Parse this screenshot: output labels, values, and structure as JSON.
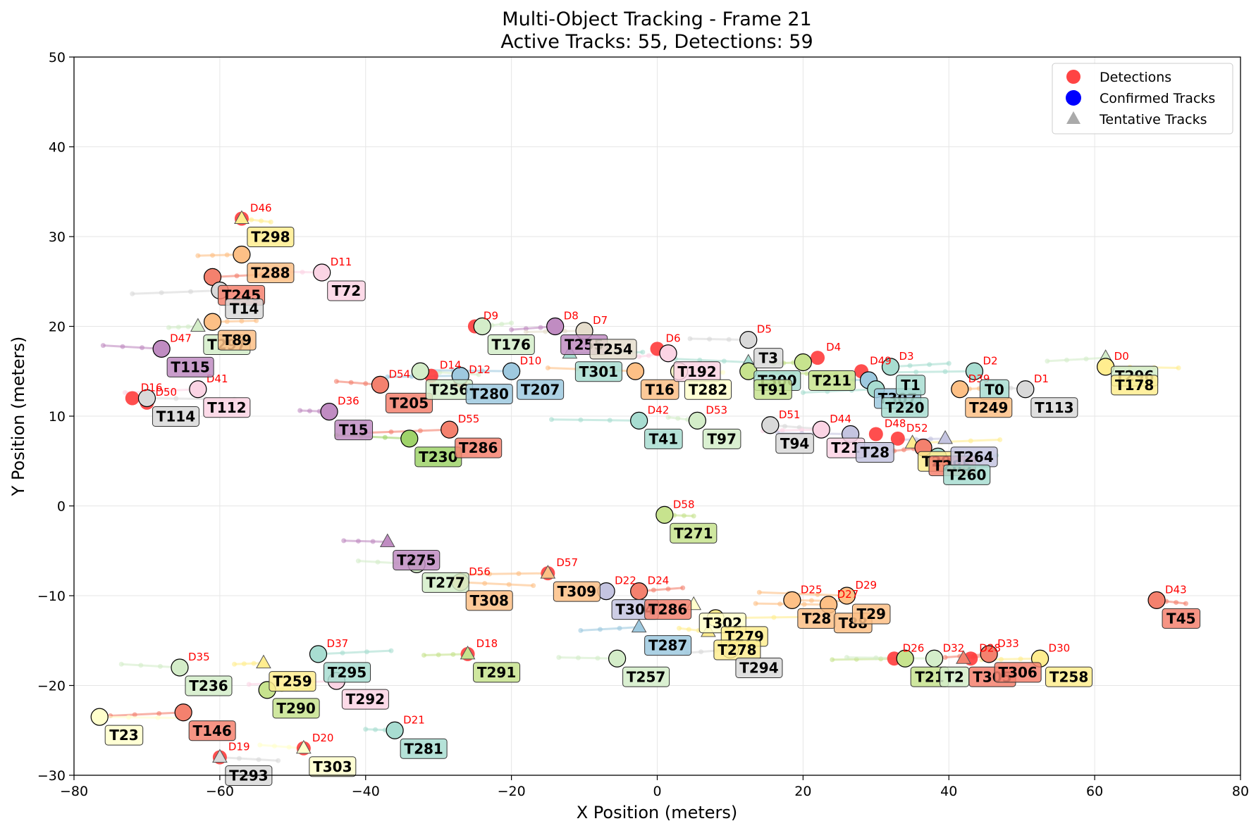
{
  "chart_data": {
    "type": "scatter",
    "title": "Multi-Object Tracking - Frame 21",
    "subtitle": "Active Tracks: 55, Detections: 59",
    "xlabel": "X Position (meters)",
    "ylabel": "Y Position (meters)",
    "xlim": [
      -80,
      80
    ],
    "ylim": [
      -30,
      50
    ],
    "xticks": [
      -80,
      -60,
      -40,
      -20,
      0,
      20,
      40,
      60,
      80
    ],
    "yticks": [
      -30,
      -20,
      -10,
      0,
      10,
      20,
      30,
      40,
      50
    ],
    "grid": true,
    "legend_position": "top-right",
    "legend": [
      {
        "label": "Detections",
        "marker": "circle",
        "color": "#ff4444"
      },
      {
        "label": "Confirmed Tracks",
        "marker": "circle",
        "color": "#0000ff"
      },
      {
        "label": "Tentative Tracks",
        "marker": "triangle",
        "color": "#aaaaaa"
      }
    ],
    "detections": [
      {
        "label": "D46",
        "x": -57,
        "y": 32
      },
      {
        "label": "D11",
        "x": -46,
        "y": 26
      },
      {
        "label": "D9",
        "x": -25,
        "y": 20
      },
      {
        "label": "D8",
        "x": -14,
        "y": 20
      },
      {
        "label": "D7",
        "x": -10,
        "y": 19.5
      },
      {
        "label": "D6",
        "x": 0,
        "y": 17.5
      },
      {
        "label": "D5",
        "x": 12.5,
        "y": 18.5
      },
      {
        "label": "D4",
        "x": 22,
        "y": 16.5
      },
      {
        "label": "D49",
        "x": 28,
        "y": 15
      },
      {
        "label": "D3",
        "x": 32,
        "y": 15.5
      },
      {
        "label": "D2",
        "x": 43.5,
        "y": 15
      },
      {
        "label": "D39",
        "x": 41.5,
        "y": 13
      },
      {
        "label": "D1",
        "x": 50.5,
        "y": 13
      },
      {
        "label": "D0",
        "x": 61.5,
        "y": 15.5
      },
      {
        "label": "D47",
        "x": -68,
        "y": 17.5
      },
      {
        "label": "D16",
        "x": -72,
        "y": 12
      },
      {
        "label": "D50",
        "x": -70,
        "y": 11.5
      },
      {
        "label": "D41",
        "x": -63,
        "y": 13
      },
      {
        "label": "D36",
        "x": -45,
        "y": 10.5
      },
      {
        "label": "D54",
        "x": -38,
        "y": 13.5
      },
      {
        "label": "D14",
        "x": -31,
        "y": 14.5
      },
      {
        "label": "D12",
        "x": -27,
        "y": 14
      },
      {
        "label": "D10",
        "x": -20,
        "y": 15
      },
      {
        "label": "D55",
        "x": -28.5,
        "y": 8.5
      },
      {
        "label": "D42",
        "x": -2.5,
        "y": 9.5
      },
      {
        "label": "D53",
        "x": 5.5,
        "y": 9.5
      },
      {
        "label": "D51",
        "x": 15.5,
        "y": 9
      },
      {
        "label": "D44",
        "x": 22.5,
        "y": 8.5
      },
      {
        "label": "D48",
        "x": 30,
        "y": 8
      },
      {
        "label": "D52",
        "x": 33,
        "y": 7.5
      },
      {
        "label": "D58",
        "x": 1,
        "y": -1
      },
      {
        "label": "D56",
        "x": -27,
        "y": -8.5
      },
      {
        "label": "D57",
        "x": -15,
        "y": -7.5
      },
      {
        "label": "D22",
        "x": -7,
        "y": -9.5
      },
      {
        "label": "D24",
        "x": -2.5,
        "y": -9.5
      },
      {
        "label": "D25",
        "x": 18.5,
        "y": -10.5
      },
      {
        "label": "D27",
        "x": 23.5,
        "y": -11
      },
      {
        "label": "D29",
        "x": 26,
        "y": -10
      },
      {
        "label": "D43",
        "x": 68.5,
        "y": -10.5
      },
      {
        "label": "D18",
        "x": -26,
        "y": -16.5
      },
      {
        "label": "D37",
        "x": -46.5,
        "y": -16.5
      },
      {
        "label": "D35",
        "x": -65.5,
        "y": -18
      },
      {
        "label": "D26",
        "x": 32.5,
        "y": -17
      },
      {
        "label": "D32",
        "x": 38,
        "y": -17
      },
      {
        "label": "D28",
        "x": 43,
        "y": -17
      },
      {
        "label": "D33",
        "x": 45.5,
        "y": -16.5
      },
      {
        "label": "D30",
        "x": 52.5,
        "y": -17
      },
      {
        "label": "D21",
        "x": -36,
        "y": -25
      },
      {
        "label": "D20",
        "x": -48.5,
        "y": -27
      },
      {
        "label": "D19",
        "x": -60,
        "y": -28
      }
    ],
    "tracks": [
      {
        "label": "T298",
        "x": -57,
        "y": 32,
        "status": "tentative",
        "color": "#ffed8f"
      },
      {
        "label": "T288",
        "x": -57,
        "y": 28,
        "status": "confirmed",
        "color": "#fdc086"
      },
      {
        "label": "T72",
        "x": -46,
        "y": 26,
        "status": "confirmed",
        "color": "#fbd4e4"
      },
      {
        "label": "T245",
        "x": -61,
        "y": 25.5,
        "status": "confirmed",
        "color": "#f4816e"
      },
      {
        "label": "T14",
        "x": -60,
        "y": 24,
        "status": "confirmed",
        "color": "#d9d9d9"
      },
      {
        "label": "T297",
        "x": -63,
        "y": 20,
        "status": "tentative",
        "color": "#d4edc9"
      },
      {
        "label": "T89",
        "x": -61,
        "y": 20.5,
        "status": "confirmed",
        "color": "#fdc086"
      },
      {
        "label": "T115",
        "x": -68,
        "y": 17.5,
        "status": "confirmed",
        "color": "#c08cc2"
      },
      {
        "label": "T112",
        "x": -63,
        "y": 13,
        "status": "confirmed",
        "color": "#fbd4e4"
      },
      {
        "label": "T114",
        "x": -70,
        "y": 12,
        "status": "confirmed",
        "color": "#d9d9d9"
      },
      {
        "label": "T15",
        "x": -45,
        "y": 10.5,
        "status": "confirmed",
        "color": "#c08cc2"
      },
      {
        "label": "T205",
        "x": -38,
        "y": 13.5,
        "status": "confirmed",
        "color": "#f4816e"
      },
      {
        "label": "T256",
        "x": -32.5,
        "y": 15,
        "status": "confirmed",
        "color": "#d4edc9"
      },
      {
        "label": "T280",
        "x": -27,
        "y": 14.5,
        "status": "confirmed",
        "color": "#9ec9df"
      },
      {
        "label": "T207",
        "x": -20,
        "y": 15,
        "status": "confirmed",
        "color": "#9ec9df"
      },
      {
        "label": "T176",
        "x": -24,
        "y": 20,
        "status": "confirmed",
        "color": "#d4edc9"
      },
      {
        "label": "T255",
        "x": -14,
        "y": 20,
        "status": "confirmed",
        "color": "#c08cc2"
      },
      {
        "label": "T254",
        "x": -10,
        "y": 19.5,
        "status": "confirmed",
        "color": "#e5ddcc"
      },
      {
        "label": "T301",
        "x": -12,
        "y": 17,
        "status": "tentative",
        "color": "#a8ddd1"
      },
      {
        "label": "T16",
        "x": -3,
        "y": 15,
        "status": "confirmed",
        "color": "#fdc086"
      },
      {
        "label": "T192",
        "x": 1.5,
        "y": 17,
        "status": "confirmed",
        "color": "#fbd4e4"
      },
      {
        "label": "T282",
        "x": 3,
        "y": 15,
        "status": "confirmed",
        "color": "#ffffcc"
      },
      {
        "label": "T3",
        "x": 12.5,
        "y": 18.5,
        "status": "confirmed",
        "color": "#d9d9d9"
      },
      {
        "label": "T300",
        "x": 12.5,
        "y": 16,
        "status": "tentative",
        "color": "#a8ddd1"
      },
      {
        "label": "T91",
        "x": 12.5,
        "y": 15,
        "status": "confirmed",
        "color": "#c7e38e"
      },
      {
        "label": "T211",
        "x": 20,
        "y": 16,
        "status": "confirmed",
        "color": "#c7e38e"
      },
      {
        "label": "T307",
        "x": 29,
        "y": 14,
        "status": "confirmed",
        "color": "#9ec9df"
      },
      {
        "label": "T1",
        "x": 32,
        "y": 15.5,
        "status": "confirmed",
        "color": "#a8ddd1"
      },
      {
        "label": "T220",
        "x": 30,
        "y": 13,
        "status": "confirmed",
        "color": "#a8ddd1"
      },
      {
        "label": "T0",
        "x": 43.5,
        "y": 15,
        "status": "confirmed",
        "color": "#a8ddd1"
      },
      {
        "label": "T249",
        "x": 41.5,
        "y": 13,
        "status": "confirmed",
        "color": "#fdc086"
      },
      {
        "label": "T113",
        "x": 50.5,
        "y": 13,
        "status": "confirmed",
        "color": "#d9d9d9"
      },
      {
        "label": "T296",
        "x": 61.5,
        "y": 16.5,
        "status": "tentative",
        "color": "#d4edc9"
      },
      {
        "label": "T178",
        "x": 61.5,
        "y": 15.5,
        "status": "confirmed",
        "color": "#ffed8f"
      },
      {
        "label": "T41",
        "x": -2.5,
        "y": 9.5,
        "status": "confirmed",
        "color": "#a8ddd1"
      },
      {
        "label": "T97",
        "x": 5.5,
        "y": 9.5,
        "status": "confirmed",
        "color": "#d4edc9"
      },
      {
        "label": "T94",
        "x": 15.5,
        "y": 9,
        "status": "confirmed",
        "color": "#d9d9d9"
      },
      {
        "label": "T21",
        "x": 22.5,
        "y": 8.5,
        "status": "confirmed",
        "color": "#fbd4e4"
      },
      {
        "label": "T28",
        "x": 26.5,
        "y": 8,
        "status": "confirmed",
        "color": "#c4c4e0"
      },
      {
        "label": "T299",
        "x": 35,
        "y": 7,
        "status": "tentative",
        "color": "#ffed8f"
      },
      {
        "label": "T285",
        "x": 36.5,
        "y": 6.5,
        "status": "confirmed",
        "color": "#f4816e"
      },
      {
        "label": "T264",
        "x": 39.5,
        "y": 7.5,
        "status": "tentative",
        "color": "#c4c4e0"
      },
      {
        "label": "T260",
        "x": 38.5,
        "y": 5.5,
        "status": "confirmed",
        "color": "#a8ddd1"
      },
      {
        "label": "T230",
        "x": -34,
        "y": 7.5,
        "status": "confirmed",
        "color": "#9fd36a"
      },
      {
        "label": "T286",
        "x": -28.5,
        "y": 8.5,
        "status": "confirmed",
        "color": "#f4816e"
      },
      {
        "label": "T271",
        "x": 1,
        "y": -1,
        "status": "confirmed",
        "color": "#c7e38e"
      },
      {
        "label": "T275",
        "x": -37,
        "y": -4,
        "status": "tentative",
        "color": "#c08cc2"
      },
      {
        "label": "T277",
        "x": -33,
        "y": -6.5,
        "status": "confirmed",
        "color": "#d4edc9"
      },
      {
        "label": "T308",
        "x": -27,
        "y": -8.5,
        "status": "confirmed",
        "color": "#fdc086"
      },
      {
        "label": "T309",
        "x": -15,
        "y": -7.5,
        "status": "tentative",
        "color": "#fdc086"
      },
      {
        "label": "T304",
        "x": -7,
        "y": -9.5,
        "status": "confirmed",
        "color": "#c4c4e0"
      },
      {
        "label": "T286",
        "x": -2.5,
        "y": -9.5,
        "status": "confirmed",
        "color": "#f4816e"
      },
      {
        "label": "T287",
        "x": -2.5,
        "y": -13.5,
        "status": "tentative",
        "color": "#9ec9df"
      },
      {
        "label": "T302",
        "x": 5,
        "y": -11,
        "status": "tentative",
        "color": "#ffffcc"
      },
      {
        "label": "T279",
        "x": 8,
        "y": -12.5,
        "status": "confirmed",
        "color": "#ffed8f"
      },
      {
        "label": "T278",
        "x": 7,
        "y": -14,
        "status": "tentative",
        "color": "#ffed8f"
      },
      {
        "label": "T294",
        "x": 10,
        "y": -16,
        "status": "confirmed",
        "color": "#d9d9d9"
      },
      {
        "label": "T28",
        "x": 18.5,
        "y": -10.5,
        "status": "confirmed",
        "color": "#fdc086"
      },
      {
        "label": "T88",
        "x": 23.5,
        "y": -11,
        "status": "confirmed",
        "color": "#fdc086"
      },
      {
        "label": "T29",
        "x": 26,
        "y": -10,
        "status": "confirmed",
        "color": "#fdc086"
      },
      {
        "label": "T45",
        "x": 68.5,
        "y": -10.5,
        "status": "confirmed",
        "color": "#f4816e"
      },
      {
        "label": "T291",
        "x": -26,
        "y": -16.5,
        "status": "tentative",
        "color": "#c7e38e"
      },
      {
        "label": "T257",
        "x": -5.5,
        "y": -17,
        "status": "confirmed",
        "color": "#d4edc9"
      },
      {
        "label": "T295",
        "x": -46.5,
        "y": -16.5,
        "status": "confirmed",
        "color": "#a8ddd1"
      },
      {
        "label": "T292",
        "x": -44,
        "y": -19.5,
        "status": "confirmed",
        "color": "#fbd4e4"
      },
      {
        "label": "T259",
        "x": -54,
        "y": -17.5,
        "status": "tentative",
        "color": "#ffed8f"
      },
      {
        "label": "T290",
        "x": -53.5,
        "y": -20.5,
        "status": "confirmed",
        "color": "#c7e38e"
      },
      {
        "label": "T236",
        "x": -65.5,
        "y": -18,
        "status": "confirmed",
        "color": "#d4edc9"
      },
      {
        "label": "T146",
        "x": -65,
        "y": -23,
        "status": "confirmed",
        "color": "#f4816e"
      },
      {
        "label": "T23",
        "x": -76.5,
        "y": -23.5,
        "status": "confirmed",
        "color": "#ffffcc"
      },
      {
        "label": "T281",
        "x": -36,
        "y": -25,
        "status": "confirmed",
        "color": "#a8ddd1"
      },
      {
        "label": "T303",
        "x": -48.5,
        "y": -27,
        "status": "tentative",
        "color": "#ffffcc"
      },
      {
        "label": "T293",
        "x": -60,
        "y": -28,
        "status": "tentative",
        "color": "#d9d9d9"
      },
      {
        "label": "T21",
        "x": 34,
        "y": -17,
        "status": "confirmed",
        "color": "#c7e38e"
      },
      {
        "label": "T2",
        "x": 38,
        "y": -17,
        "status": "confirmed",
        "color": "#d4edc9"
      },
      {
        "label": "T305",
        "x": 42,
        "y": -17,
        "status": "tentative",
        "color": "#f4816e"
      },
      {
        "label": "T306",
        "x": 45.5,
        "y": -16.5,
        "status": "confirmed",
        "color": "#f4816e"
      },
      {
        "label": "T258",
        "x": 52.5,
        "y": -17,
        "status": "confirmed",
        "color": "#ffed8f"
      }
    ]
  }
}
